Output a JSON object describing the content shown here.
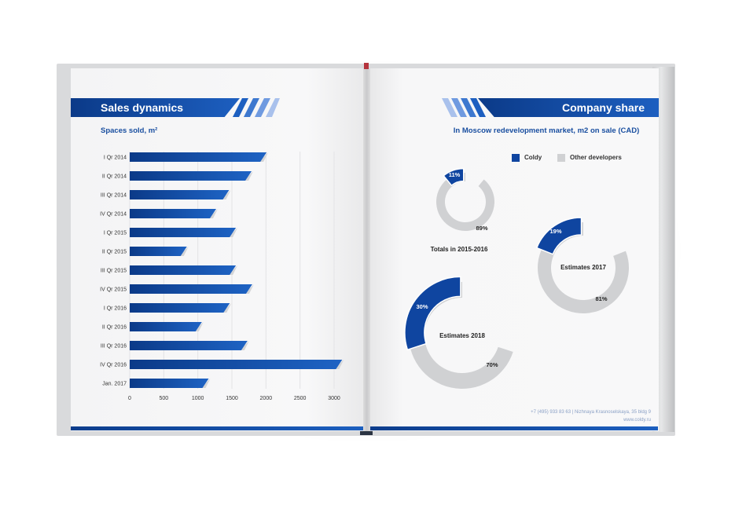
{
  "left_page": {
    "title": "Sales dynamics",
    "subtitle": "Spaces sold, m²"
  },
  "right_page": {
    "title": "Company share",
    "subtitle": "In Moscow redevelopment market, m2 on sale (CAD)"
  },
  "legend": [
    {
      "label": "Coldy",
      "color": "#0f45a0"
    },
    {
      "label": "Other developers",
      "color": "#d0d1d3"
    }
  ],
  "footer": {
    "line1": "+7 (495) 933 83 63 | Nizhnaya Krasnoselskaya, 35 bldg 9",
    "line2": "www.coldy.ru"
  },
  "colors": {
    "brand": "#0f45a0",
    "brand_light": "#1d5fc0",
    "other": "#d0d1d3"
  },
  "chart_data": [
    {
      "type": "bar",
      "orientation": "horizontal",
      "categories": [
        "I Qr 2014",
        "II Qr 2014",
        "III Qr 2014",
        "IV Qr 2014",
        "I Qr 2015",
        "II Qr 2015",
        "III Qr 2015",
        "IV Qr 2015",
        "I Qr 2016",
        "II Qr 2016",
        "III Qr 2016",
        "IV Qr 2016",
        "Jan. 2017"
      ],
      "values": [
        1940,
        1720,
        1390,
        1200,
        1490,
        770,
        1490,
        1730,
        1400,
        990,
        1660,
        3050,
        1090
      ],
      "xticks": [
        0,
        500,
        1000,
        1500,
        2000,
        2500,
        3000
      ],
      "xlim": [
        0,
        3000
      ],
      "grid": true
    },
    {
      "type": "pie",
      "variant": "donut",
      "title": "Totals in 2015-2016",
      "slices": [
        {
          "label": "Coldy",
          "value": 11,
          "text": "11%"
        },
        {
          "label": "Other developers",
          "value": 89,
          "text": "89%"
        }
      ]
    },
    {
      "type": "pie",
      "variant": "donut",
      "title": "Estimates 2017",
      "slices": [
        {
          "label": "Coldy",
          "value": 19,
          "text": "19%"
        },
        {
          "label": "Other developers",
          "value": 81,
          "text": "81%"
        }
      ]
    },
    {
      "type": "pie",
      "variant": "donut",
      "title": "Estimates 2018",
      "slices": [
        {
          "label": "Coldy",
          "value": 30,
          "text": "30%"
        },
        {
          "label": "Other developers",
          "value": 70,
          "text": "70%"
        }
      ]
    }
  ]
}
